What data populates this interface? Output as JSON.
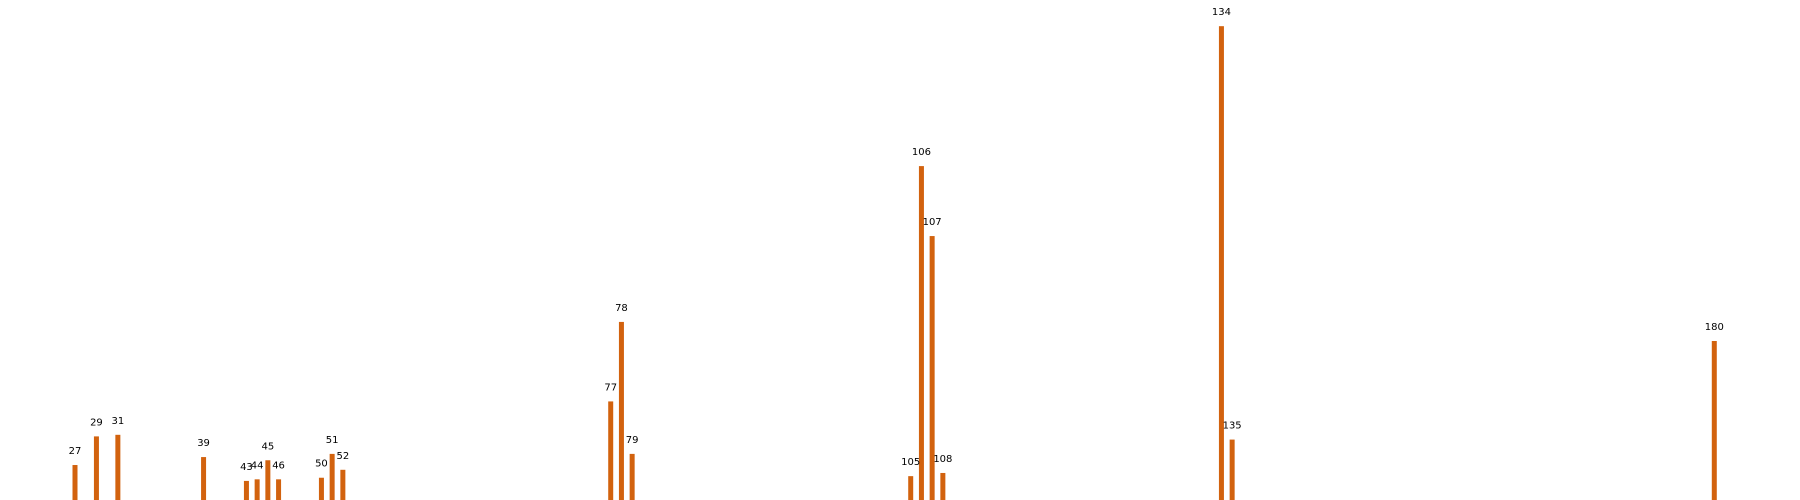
{
  "chart_data": {
    "type": "bar",
    "x": [
      27,
      29,
      31,
      39,
      43,
      44,
      45,
      46,
      50,
      51,
      52,
      77,
      78,
      79,
      105,
      106,
      107,
      108,
      134,
      135,
      180
    ],
    "values": [
      11,
      20,
      20.5,
      13.5,
      6,
      6.5,
      12.5,
      6.5,
      7,
      14.5,
      9.5,
      31,
      56,
      14.5,
      7.5,
      105,
      83,
      8.5,
      149,
      19,
      50
    ],
    "labels": [
      "27",
      "29",
      "31",
      "39",
      "43",
      "44",
      "45",
      "46",
      "50",
      "51",
      "52",
      "77",
      "78",
      "79",
      "105",
      "106",
      "107",
      "108",
      "134",
      "135",
      "180"
    ],
    "xlim": [
      20,
      188
    ],
    "ylim": [
      0,
      150
    ],
    "grid": false,
    "colors": {
      "bar": "#d2620e"
    }
  }
}
